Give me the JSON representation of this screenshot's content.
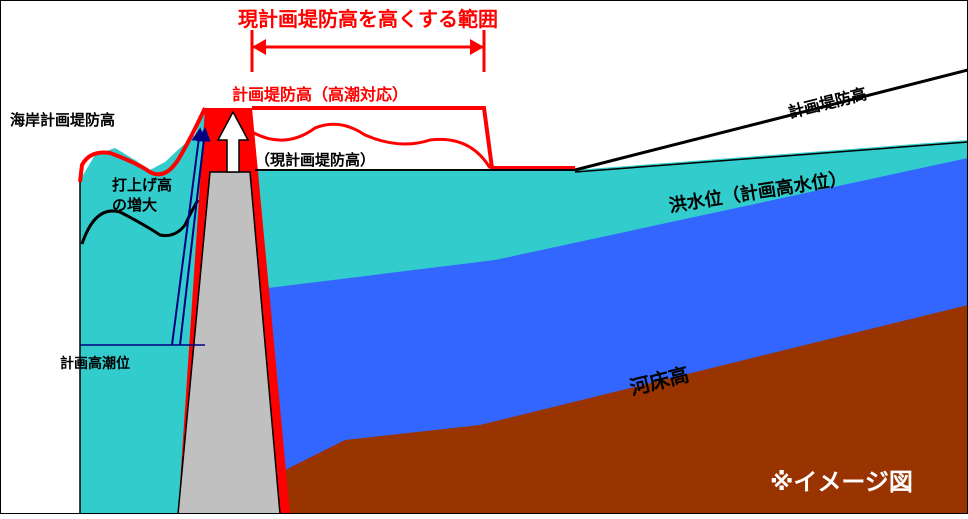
{
  "labels": {
    "range_title": "現計画堤防高を高くする範囲",
    "planned_levee_height_tidal": "計画堤防高（高潮対応）",
    "coastal_planned_levee_height": "海岸計画堤防高",
    "current_planned_levee_height": "（現計画堤防高）",
    "wave_runup_increase": [
      "打上げ高",
      "の増大"
    ],
    "planned_high_tide_level": "計画高潮位",
    "planned_levee_height": "計画堤防高",
    "flood_level": "洪水位（計画高水位）",
    "riverbed_height": "河床高",
    "image_note": "※イメージ図"
  },
  "colors": {
    "sea_teal": "#33cccc",
    "river_blue": "#3366ff",
    "riverbed_brown": "#993300",
    "levee_gray": "#c0c0c0",
    "raise_red": "#ff0000",
    "arrow_navy": "#000080",
    "outline_black": "#000000"
  }
}
